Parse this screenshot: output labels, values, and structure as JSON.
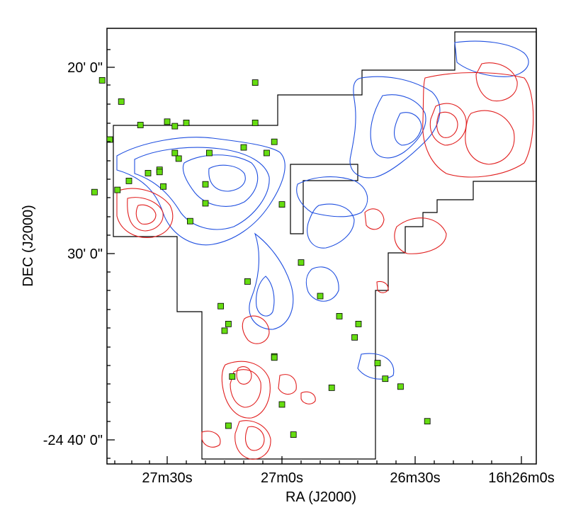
{
  "chart_data": {
    "type": "scatter",
    "title": "",
    "xlabel": "RA (J2000)",
    "ylabel": "DEC (J2000)",
    "x_ticks": [
      "27m30s",
      "27m0s",
      "26m30s",
      "16h26m0s"
    ],
    "y_ticks": [
      "20' 0\"",
      "30' 0\"",
      "-24 40' 0\""
    ],
    "grid": false,
    "legend": "none",
    "series": [
      {
        "marker": "square",
        "color": "#66dd11",
        "note_sources": "green square markers",
        "points": [
          [
            1627.47,
            -24.345
          ],
          [
            1627.42,
            -24.364
          ],
          [
            1627.3,
            -24.382
          ],
          [
            1627.25,
            -24.383
          ],
          [
            1627.28,
            -24.386
          ],
          [
            1627.37,
            -24.385
          ],
          [
            1627.45,
            -24.398
          ],
          [
            1627.28,
            -24.41
          ],
          [
            1627.19,
            -24.41
          ],
          [
            1627.49,
            -24.445
          ],
          [
            1627.43,
            -24.443
          ],
          [
            1627.4,
            -24.435
          ],
          [
            1627.35,
            -24.428
          ],
          [
            1627.32,
            -24.425
          ],
          [
            1627.31,
            -24.44
          ],
          [
            1627.2,
            -24.455
          ],
          [
            1627.1,
            -24.405
          ],
          [
            1627.04,
            -24.41
          ],
          [
            1627.02,
            -24.4
          ],
          [
            1626.87,
            -24.415
          ],
          [
            1626.92,
            -24.427
          ],
          [
            1627.0,
            -24.456
          ],
          [
            1627.09,
            -24.525
          ],
          [
            1627.16,
            -24.547
          ],
          [
            1627.15,
            -24.569
          ],
          [
            1627.14,
            -24.563
          ],
          [
            1627.02,
            -24.592
          ],
          [
            1626.8,
            -24.438
          ],
          [
            1626.67,
            -24.347
          ],
          [
            1626.67,
            -24.383
          ],
          [
            1626.84,
            -24.471
          ],
          [
            1626.55,
            -24.508
          ],
          [
            1626.5,
            -24.538
          ],
          [
            1626.45,
            -24.556
          ],
          [
            1626.4,
            -24.563
          ],
          [
            1626.41,
            -24.575
          ],
          [
            1626.35,
            -24.598
          ],
          [
            1626.33,
            -24.612
          ],
          [
            1626.47,
            -24.62
          ],
          [
            1626.6,
            -24.635
          ],
          [
            1626.57,
            -24.662
          ],
          [
            1626.74,
            -24.654
          ],
          [
            1626.73,
            -24.61
          ],
          [
            1626.62,
            -24.593
          ],
          [
            1626.29,
            -24.619
          ],
          [
            1626.22,
            -24.65
          ]
        ]
      }
    ],
    "contour_colors": {
      "blue": "#1f4fe0",
      "red": "#e11f1f"
    }
  }
}
